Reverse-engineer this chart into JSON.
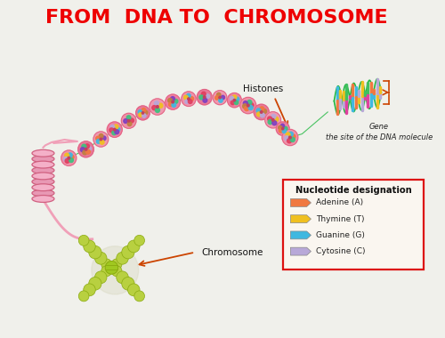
{
  "title": "FROM  DNA TO  CHROMOSOME",
  "title_color": "#ee0000",
  "title_fontsize": 16,
  "bg_color": "#f0f0eb",
  "legend_title": "Nucleotide designation",
  "legend_items": [
    {
      "label": "Adenine (A)",
      "color": "#f07840"
    },
    {
      "label": "Thymine (T)",
      "color": "#f0c020"
    },
    {
      "label": "Guanine (G)",
      "color": "#40b8e0"
    },
    {
      "label": "Cytosine (C)",
      "color": "#b8a8d8"
    }
  ],
  "label_histones": "Histones",
  "label_gene": "Gene\nthe site of the DNA molecule",
  "label_chromosome": "Chromosome",
  "arrow_color": "#cc4400",
  "nuc_pink": "#f090a8",
  "nuc_dark_pink": "#e06080",
  "solenoid_pink": "#f0a0b8",
  "chrom_color": "#b8d040",
  "chrom_ec": "#8aaa10",
  "dna_green": "#20b840"
}
